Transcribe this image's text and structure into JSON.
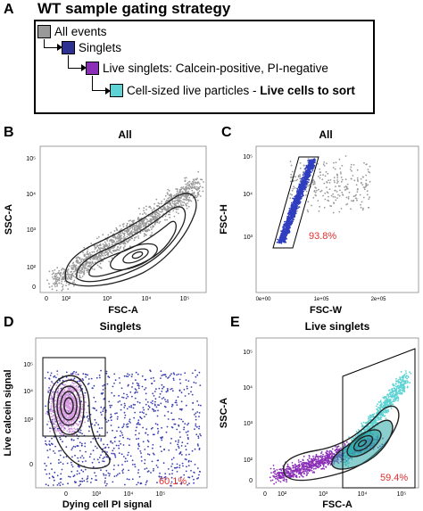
{
  "panel_a": {
    "letter": "A",
    "title": "WT sample gating strategy",
    "levels": [
      {
        "label": "All events",
        "bold_suffix": "",
        "color": "#999999"
      },
      {
        "label": "Singlets",
        "bold_suffix": "",
        "color": "#2e3192"
      },
      {
        "label": "Live singlets: Calcein-positive, PI-negative",
        "bold_suffix": "",
        "color": "#8b2fb8"
      },
      {
        "label": "Cell-sized live particles - ",
        "bold_suffix": "Live cells to sort",
        "color": "#5fd3d3"
      }
    ]
  },
  "chart_data": [
    {
      "panel": "B",
      "type": "scatter",
      "title": "All",
      "xlabel": "FSC-A",
      "ylabel": "SSC-A",
      "x_ticks": [
        "0",
        "10²",
        "10³",
        "10⁴",
        "10⁵"
      ],
      "y_ticks": [
        "0",
        "10²",
        "10³",
        "10⁴",
        "10⁵"
      ],
      "colors": {
        "points": "#9a9a9a",
        "contours": "#222222"
      },
      "gate_percent": ""
    },
    {
      "panel": "C",
      "type": "scatter",
      "title": "All",
      "xlabel": "FSC-W",
      "ylabel": "FSC-H",
      "x_ticks": [
        "0e+00",
        "1e+05",
        "2e+05"
      ],
      "y_ticks": [
        "10³",
        "10⁴",
        "10⁵"
      ],
      "colors": {
        "points_gated": "#2f3fbf",
        "points_other": "#9a9a9a"
      },
      "gate_percent": "93.8%"
    },
    {
      "panel": "D",
      "type": "scatter",
      "title": "Singlets",
      "xlabel": "Dying cell PI signal",
      "ylabel": "Live calcein signal",
      "x_ticks": [
        "0",
        "10³",
        "10⁴",
        "10⁵"
      ],
      "y_ticks": [
        "0",
        "10³",
        "10⁴",
        "10⁵"
      ],
      "colors": {
        "points_gated": "#d79ae0",
        "points_other": "#3a3fb0",
        "contours": "#222222"
      },
      "gate_percent": "60.1%"
    },
    {
      "panel": "E",
      "type": "scatter",
      "title": "Live singlets",
      "xlabel": "FSC-A",
      "ylabel": "SSC-A",
      "x_ticks": [
        "0",
        "10²",
        "10³",
        "10⁴",
        "10⁵"
      ],
      "y_ticks": [
        "0",
        "10²",
        "10³",
        "10⁴",
        "10⁵"
      ],
      "colors": {
        "points_gated": "#5fd3d3",
        "points_other": "#8b2fb8",
        "contours": "#222222",
        "contour_fill": "#2aa6a6"
      },
      "gate_percent": "59.4%"
    }
  ],
  "colors": {
    "percent_text": "#e03030"
  }
}
